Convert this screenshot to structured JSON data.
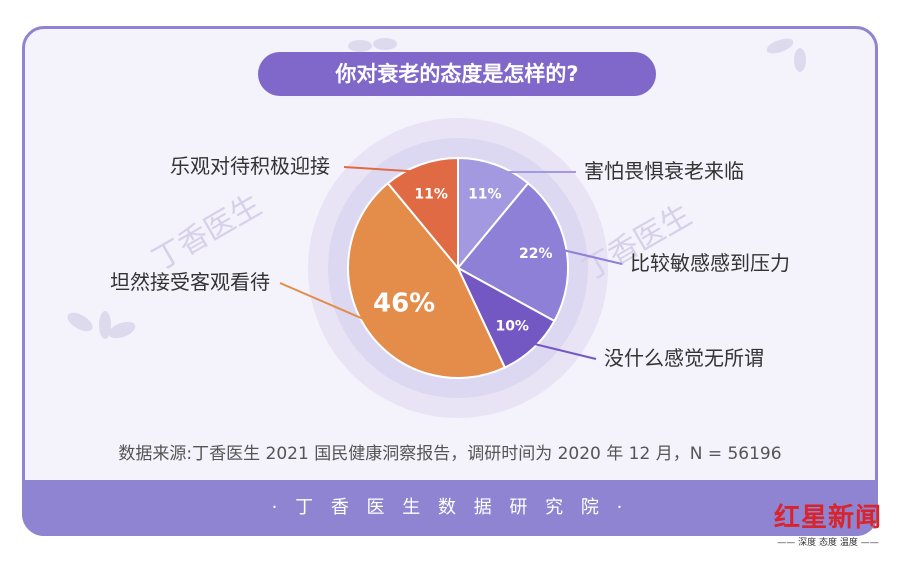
{
  "title": "你对衰老的态度是怎样的?",
  "source": "数据来源:丁香医生 2021 国民健康洞察报告，调研时间为 2020 年 12 月，N = 56196",
  "footer": "· 丁 香 医 生 数 据 研 究 院 ·",
  "watermark": "丁香医生",
  "logo": {
    "main": "红星新闻",
    "sub": "—— 深度 态度 温度 ——"
  },
  "colors": {
    "card": "#f4f2fb",
    "border": "#8e84d1",
    "pill": "#7f68c9"
  },
  "chart_data": {
    "type": "pie",
    "title": "你对衰老的态度是怎样的?",
    "slices": [
      {
        "label": "害怕畏惧衰老来临",
        "value": 11,
        "display": "11%",
        "color": "#a399e0"
      },
      {
        "label": "比较敏感感到压力",
        "value": 22,
        "display": "22%",
        "color": "#8d80d6"
      },
      {
        "label": "没什么感觉无所谓",
        "value": 10,
        "display": "10%",
        "color": "#7358c4"
      },
      {
        "label": "坦然接受客观看待",
        "value": 46,
        "display": "46%",
        "color": "#e48c4a"
      },
      {
        "label": "乐观对待积极迎接",
        "value": 11,
        "display": "11%",
        "color": "#e06a44"
      }
    ]
  }
}
